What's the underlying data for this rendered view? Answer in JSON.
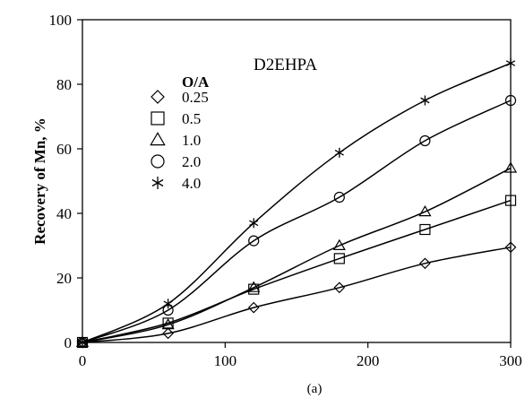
{
  "chart_data": {
    "type": "line",
    "title": "",
    "xlabel": "",
    "ylabel": "Recovery of Mn, %",
    "caption": "(a)",
    "annotation": "D2EHPA",
    "legend_title": "O/A",
    "legend_position": "top-left",
    "grid": false,
    "xlim": [
      0,
      300
    ],
    "ylim": [
      0,
      100
    ],
    "xticks": [
      0,
      100,
      200,
      300
    ],
    "yticks": [
      0,
      20,
      40,
      60,
      80,
      100
    ],
    "x": [
      0,
      60,
      120,
      180,
      240,
      300
    ],
    "series": [
      {
        "name": "0.25",
        "marker": "diamond",
        "values": [
          0,
          2.8,
          10.8,
          17,
          24.5,
          29.5
        ]
      },
      {
        "name": "0.5",
        "marker": "square",
        "values": [
          0,
          6,
          16.5,
          26,
          35,
          44
        ]
      },
      {
        "name": "1.0",
        "marker": "triangle",
        "values": [
          0,
          5.5,
          17,
          30,
          40.5,
          54
        ]
      },
      {
        "name": "2.0",
        "marker": "circle",
        "values": [
          0,
          10,
          31.5,
          45,
          62.5,
          75
        ]
      },
      {
        "name": "4.0",
        "marker": "star",
        "values": [
          0,
          12,
          37,
          58.8,
          75,
          86.5
        ]
      }
    ]
  }
}
